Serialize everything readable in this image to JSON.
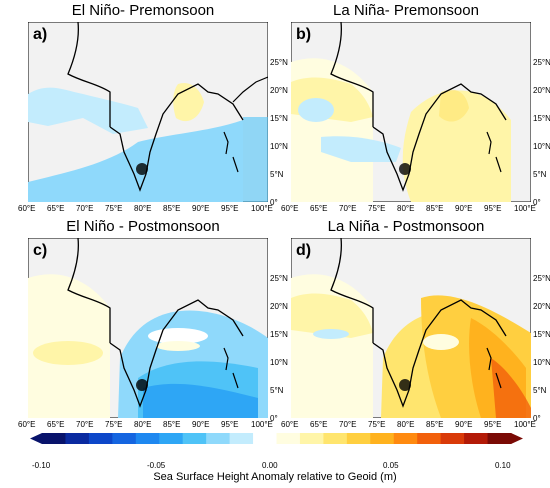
{
  "panels": [
    {
      "title": "El Niño- Premonsoon",
      "label": "a)"
    },
    {
      "title": "La Niña- Premonsoon",
      "label": "b)"
    },
    {
      "title": "El Niño - Postmonsoon",
      "label": "c)"
    },
    {
      "title": "La Niña - Postmonsoon",
      "label": "d)"
    }
  ],
  "axes": {
    "lon_ticks": [
      "60°E",
      "65°E",
      "70°E",
      "75°E",
      "80°E",
      "85°E",
      "90°E",
      "95°E",
      "100°E"
    ],
    "lat_ticks": [
      "0°",
      "5°N",
      "10°N",
      "15°N",
      "20°N",
      "25°N"
    ]
  },
  "colorbar": {
    "title": "Sea Surface Height Anomaly relative to Geoid (m)",
    "ticks": [
      "-0.10",
      "-0.05",
      "0.00",
      "0.05",
      "0.10"
    ],
    "colors": [
      "#08136b",
      "#0a2aa0",
      "#0d47c9",
      "#1565e0",
      "#1e88f0",
      "#2ea6f5",
      "#4fc3f7",
      "#8fd9fb",
      "#c3ecfd",
      "#ffffff",
      "#fffde0",
      "#fff5a8",
      "#ffe56e",
      "#ffcf40",
      "#ffb21e",
      "#ff8a10",
      "#f2600b",
      "#d93a09",
      "#b31a07",
      "#7a0a05"
    ]
  }
}
